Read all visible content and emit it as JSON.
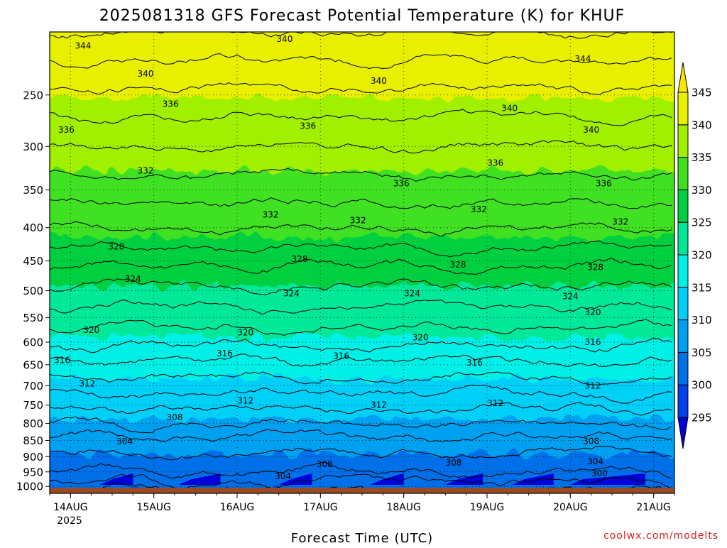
{
  "chart_data": {
    "type": "heatmap",
    "title": "2025081318 GFS Forecast Potential Temperature (K) for KHUF",
    "xlabel": "Forecast Time (UTC)",
    "ylabel": "",
    "credit": "coolwx.com/modelts",
    "y_scale": "log-pressure",
    "y_range_hpa": [
      1025,
      200
    ],
    "y_ticks": [
      "250",
      "300",
      "350",
      "400",
      "450",
      "500",
      "550",
      "600",
      "650",
      "700",
      "750",
      "800",
      "850",
      "900",
      "950",
      "1000"
    ],
    "x_ticks": [
      "14AUG",
      "15AUG",
      "16AUG",
      "17AUG",
      "18AUG",
      "19AUG",
      "20AUG",
      "21AUG"
    ],
    "x_year": "2025",
    "x_range_days": [
      13.75,
      21.25
    ],
    "grid": "dotted",
    "colorbar": {
      "levels": [
        "295",
        "300",
        "305",
        "310",
        "315",
        "320",
        "325",
        "330",
        "335",
        "340",
        "345"
      ],
      "colors": [
        "#0000d8",
        "#0040e8",
        "#0070e8",
        "#00a0f0",
        "#00d0f8",
        "#00f0e8",
        "#00e898",
        "#00d040",
        "#40e020",
        "#a0f000",
        "#e8f000",
        "#ffe800"
      ],
      "extend": "both",
      "placement": "right"
    },
    "ground": {
      "pressure_hpa": 1005,
      "color": "#9c4b20"
    },
    "profile": {
      "pressure_hpa": [
        1000,
        950,
        900,
        850,
        800,
        750,
        700,
        650,
        600,
        550,
        500,
        450,
        400,
        350,
        300,
        250,
        200
      ],
      "theta_k": [
        299,
        302,
        303.5,
        305.5,
        308,
        310.5,
        313,
        315.5,
        318.5,
        321,
        323.5,
        326.5,
        330,
        333,
        336,
        339.5,
        344
      ]
    },
    "contour_labels": [
      {
        "text": "344",
        "day": 14.15,
        "hpa": 210
      },
      {
        "text": "340",
        "day": 16.57,
        "hpa": 205
      },
      {
        "text": "344",
        "day": 20.15,
        "hpa": 220
      },
      {
        "text": "340",
        "day": 14.9,
        "hpa": 232
      },
      {
        "text": "336",
        "day": 15.2,
        "hpa": 258
      },
      {
        "text": "340",
        "day": 17.7,
        "hpa": 238
      },
      {
        "text": "340",
        "day": 19.27,
        "hpa": 262
      },
      {
        "text": "336",
        "day": 13.95,
        "hpa": 283
      },
      {
        "text": "336",
        "day": 16.85,
        "hpa": 279
      },
      {
        "text": "340",
        "day": 20.25,
        "hpa": 283
      },
      {
        "text": "336",
        "day": 19.1,
        "hpa": 318
      },
      {
        "text": "332",
        "day": 14.9,
        "hpa": 327
      },
      {
        "text": "336",
        "day": 17.97,
        "hpa": 342
      },
      {
        "text": "336",
        "day": 20.4,
        "hpa": 342
      },
      {
        "text": "332",
        "day": 16.4,
        "hpa": 382
      },
      {
        "text": "332",
        "day": 17.45,
        "hpa": 390
      },
      {
        "text": "332",
        "day": 18.9,
        "hpa": 375
      },
      {
        "text": "332",
        "day": 20.6,
        "hpa": 392
      },
      {
        "text": "328",
        "day": 14.55,
        "hpa": 428
      },
      {
        "text": "328",
        "day": 16.75,
        "hpa": 447
      },
      {
        "text": "328",
        "day": 18.65,
        "hpa": 456
      },
      {
        "text": "328",
        "day": 20.3,
        "hpa": 460
      },
      {
        "text": "324",
        "day": 14.75,
        "hpa": 480
      },
      {
        "text": "324",
        "day": 16.65,
        "hpa": 505
      },
      {
        "text": "324",
        "day": 18.1,
        "hpa": 505
      },
      {
        "text": "324",
        "day": 20.0,
        "hpa": 510
      },
      {
        "text": "320",
        "day": 20.27,
        "hpa": 540
      },
      {
        "text": "320",
        "day": 14.25,
        "hpa": 575
      },
      {
        "text": "320",
        "day": 16.1,
        "hpa": 580
      },
      {
        "text": "320",
        "day": 18.2,
        "hpa": 590
      },
      {
        "text": "316",
        "day": 20.27,
        "hpa": 600
      },
      {
        "text": "316",
        "day": 13.9,
        "hpa": 640
      },
      {
        "text": "316",
        "day": 15.85,
        "hpa": 625
      },
      {
        "text": "316",
        "day": 17.25,
        "hpa": 630
      },
      {
        "text": "316",
        "day": 18.85,
        "hpa": 645
      },
      {
        "text": "312",
        "day": 14.2,
        "hpa": 695
      },
      {
        "text": "312",
        "day": 20.27,
        "hpa": 700
      },
      {
        "text": "312",
        "day": 16.1,
        "hpa": 738
      },
      {
        "text": "312",
        "day": 17.7,
        "hpa": 750
      },
      {
        "text": "312",
        "day": 19.1,
        "hpa": 745
      },
      {
        "text": "308",
        "day": 15.25,
        "hpa": 783
      },
      {
        "text": "308",
        "day": 20.25,
        "hpa": 852
      },
      {
        "text": "304",
        "day": 14.65,
        "hpa": 853
      },
      {
        "text": "308",
        "day": 17.05,
        "hpa": 925
      },
      {
        "text": "308",
        "day": 18.6,
        "hpa": 920
      },
      {
        "text": "304",
        "day": 20.3,
        "hpa": 915
      },
      {
        "text": "300",
        "day": 20.35,
        "hpa": 955
      },
      {
        "text": "304",
        "day": 16.55,
        "hpa": 965
      }
    ]
  }
}
